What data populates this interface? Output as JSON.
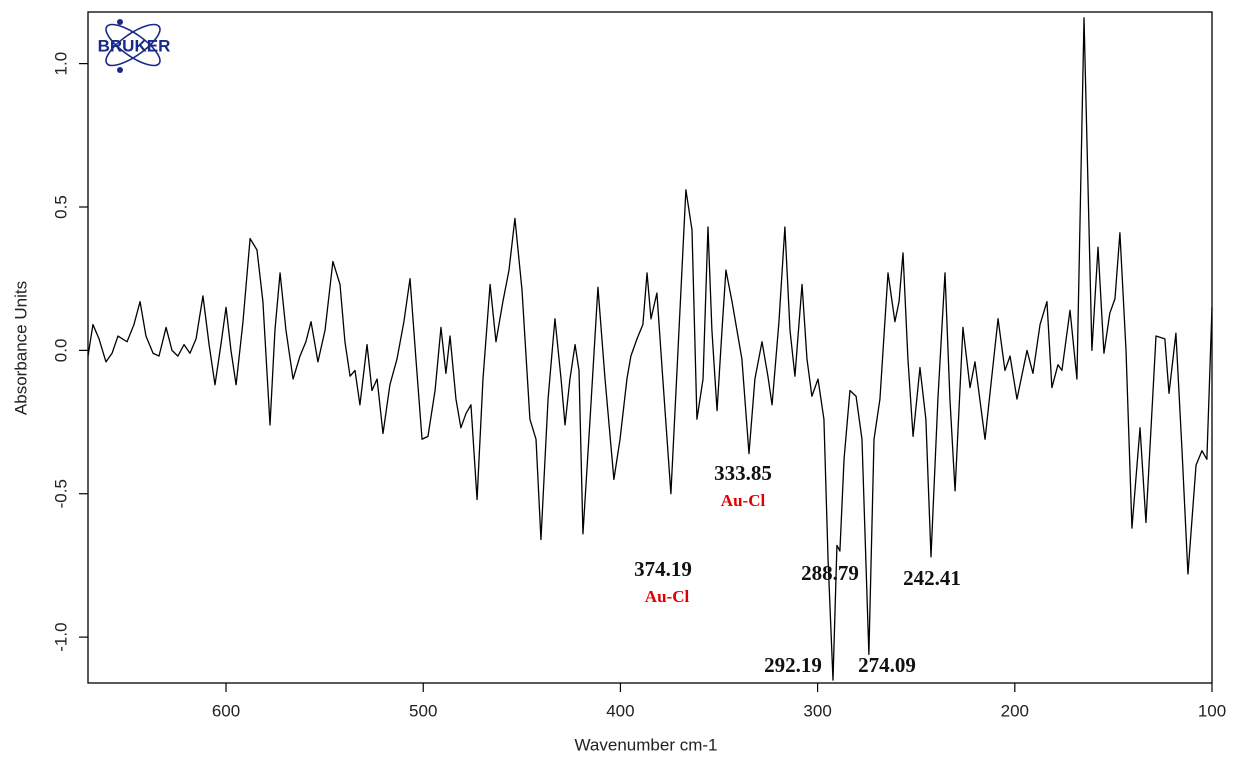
{
  "chart_data": {
    "type": "line",
    "x_label": "Wavenumber cm-1",
    "y_label": "Absorbance Units",
    "logo": "BRUKER",
    "xlim": [
      670,
      100
    ],
    "ylim": [
      -1.16,
      1.18
    ],
    "xticks": [
      600,
      500,
      400,
      300,
      200,
      100
    ],
    "yticks": [
      {
        "value": -1.0,
        "label": "-1.0"
      },
      -0.5,
      {
        "value": 0.0,
        "label": "0.0"
      },
      0.5,
      {
        "value": 1.0,
        "label": "1.0"
      }
    ],
    "series": [
      {
        "name": null,
        "color": "#000000",
        "x": [
          670.0,
          667.5,
          664.4,
          660.9,
          657.8,
          654.8,
          650.2,
          646.7,
          643.6,
          640.6,
          637.0,
          634.0,
          630.4,
          627.4,
          624.4,
          621.3,
          618.3,
          615.2,
          611.7,
          608.6,
          605.6,
          602.6,
          600.0,
          597.5,
          594.9,
          591.4,
          587.8,
          584.3,
          581.3,
          577.7,
          575.2,
          572.6,
          569.6,
          566.0,
          562.5,
          559.5,
          556.9,
          553.4,
          549.8,
          545.8,
          542.2,
          539.7,
          537.1,
          534.6,
          532.1,
          528.5,
          526.0,
          523.4,
          520.4,
          516.9,
          513.3,
          509.8,
          506.7,
          503.7,
          500.6,
          497.6,
          494.0,
          491.0,
          488.5,
          486.4,
          483.4,
          480.9,
          478.3,
          475.8,
          472.7,
          469.7,
          466.1,
          463.1,
          459.6,
          456.5,
          453.5,
          449.9,
          445.9,
          442.8,
          440.3,
          436.7,
          433.2,
          430.1,
          428.1,
          425.6,
          423.0,
          421.0,
          419.0,
          415.4,
          411.4,
          407.8,
          403.3,
          400.2,
          396.7,
          394.7,
          391.6,
          388.6,
          386.5,
          384.5,
          381.5,
          378.5,
          374.4,
          370.8,
          366.8,
          363.7,
          361.2,
          358.1,
          355.6,
          353.6,
          351.0,
          348.5,
          346.5,
          343.4,
          340.9,
          338.4,
          334.8,
          331.8,
          328.2,
          325.2,
          323.1,
          319.6,
          316.6,
          314.0,
          311.5,
          307.9,
          305.4,
          302.9,
          299.8,
          296.8,
          294.7,
          292.2,
          290.2,
          288.7,
          286.6,
          283.6,
          280.5,
          277.5,
          274.0,
          271.4,
          268.4,
          264.3,
          260.8,
          258.7,
          256.7,
          254.2,
          251.6,
          248.1,
          245.1,
          242.5,
          239.0,
          235.4,
          232.9,
          230.3,
          226.3,
          222.7,
          220.2,
          215.1,
          208.5,
          205.0,
          202.4,
          198.9,
          193.8,
          190.8,
          187.2,
          183.7,
          181.2,
          178.1,
          176.1,
          172.0,
          168.5,
          164.9,
          160.9,
          157.8,
          154.8,
          151.8,
          149.2,
          146.7,
          143.6,
          140.6,
          136.5,
          133.5,
          128.4,
          123.9,
          121.8,
          118.3,
          115.2,
          112.2,
          108.1,
          105.1,
          102.6,
          100.0
        ],
        "values": [
          -0.02,
          0.09,
          0.04,
          -0.04,
          -0.01,
          0.05,
          0.03,
          0.09,
          0.17,
          0.05,
          -0.01,
          -0.02,
          0.08,
          0.0,
          -0.02,
          0.02,
          -0.01,
          0.04,
          0.19,
          0.02,
          -0.12,
          0.02,
          0.15,
          0.0,
          -0.12,
          0.1,
          0.39,
          0.35,
          0.17,
          -0.26,
          0.07,
          0.27,
          0.07,
          -0.1,
          -0.02,
          0.03,
          0.1,
          -0.04,
          0.07,
          0.31,
          0.23,
          0.03,
          -0.09,
          -0.07,
          -0.19,
          0.02,
          -0.14,
          -0.1,
          -0.29,
          -0.12,
          -0.03,
          0.1,
          0.25,
          -0.03,
          -0.31,
          -0.3,
          -0.14,
          0.08,
          -0.08,
          0.05,
          -0.17,
          -0.27,
          -0.22,
          -0.19,
          -0.52,
          -0.1,
          0.23,
          0.03,
          0.17,
          0.28,
          0.46,
          0.21,
          -0.24,
          -0.31,
          -0.66,
          -0.17,
          0.11,
          -0.1,
          -0.26,
          -0.1,
          0.02,
          -0.07,
          -0.64,
          -0.24,
          0.22,
          -0.1,
          -0.45,
          -0.31,
          -0.1,
          -0.02,
          0.04,
          0.09,
          0.27,
          0.11,
          0.2,
          -0.1,
          -0.5,
          0.0,
          0.56,
          0.42,
          -0.24,
          -0.1,
          0.43,
          0.07,
          -0.21,
          0.07,
          0.28,
          0.17,
          0.07,
          -0.03,
          -0.36,
          -0.1,
          0.03,
          -0.09,
          -0.19,
          0.1,
          0.43,
          0.07,
          -0.09,
          0.23,
          -0.03,
          -0.16,
          -0.1,
          -0.24,
          -0.73,
          -1.15,
          -0.68,
          -0.7,
          -0.38,
          -0.14,
          -0.16,
          -0.31,
          -1.06,
          -0.31,
          -0.17,
          0.27,
          0.1,
          0.17,
          0.34,
          -0.03,
          -0.3,
          -0.06,
          -0.24,
          -0.72,
          -0.17,
          0.27,
          -0.17,
          -0.49,
          0.08,
          -0.13,
          -0.04,
          -0.31,
          0.11,
          -0.07,
          -0.02,
          -0.17,
          0.0,
          -0.08,
          0.09,
          0.17,
          -0.13,
          -0.05,
          -0.07,
          0.14,
          -0.1,
          1.16,
          0.0,
          0.36,
          -0.01,
          0.13,
          0.18,
          0.41,
          0.0,
          -0.62,
          -0.27,
          -0.6,
          0.05,
          0.04,
          -0.15,
          0.06,
          -0.35,
          -0.78,
          -0.4,
          -0.35,
          -0.38,
          0.15
        ]
      }
    ],
    "annotations": [
      {
        "label": 374.19,
        "note": "Au-Cl"
      },
      {
        "label": 333.85,
        "note": "Au-Cl"
      },
      {
        "label": 288.79
      },
      {
        "label": 242.41
      },
      {
        "label": 292.19
      },
      {
        "label": 274.09
      }
    ]
  }
}
